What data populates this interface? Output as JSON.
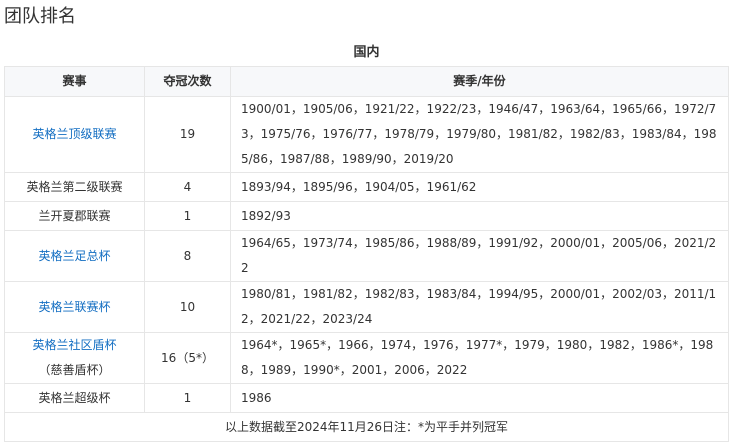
{
  "title": "团队排名",
  "caption": "国内",
  "headers": [
    "赛事",
    "夺冠次数",
    "赛季/年份"
  ],
  "rows": [
    {
      "event": "英格兰顶级联赛",
      "link": true,
      "count": "19",
      "seasons": "1900/01，1905/06，1921/22，1922/23，1946/47，1963/64，1965/66，1972/73，1975/76，1976/77，1978/79，1979/80，1981/82，1982/83，1983/84，1985/86，1987/88，1989/90，2019/20"
    },
    {
      "event": "英格兰第二级联赛",
      "link": false,
      "count": "4",
      "seasons": "1893/94，1895/96，1904/05，1961/62"
    },
    {
      "event": "兰开夏郡联赛",
      "link": false,
      "count": "1",
      "seasons": "1892/93"
    },
    {
      "event": "英格兰足总杯",
      "link": true,
      "count": "8",
      "seasons": "1964/65，1973/74，1985/86，1988/89，1991/92，2000/01，2005/06，2021/22"
    },
    {
      "event": "英格兰联赛杯",
      "link": true,
      "count": "10",
      "seasons": "1980/81，1981/82，1982/83，1983/84，1994/95，2000/01，2002/03，2011/12，2021/22，2023/24"
    },
    {
      "event": "英格兰社区盾杯",
      "event_sub": "（慈善盾杯）",
      "link": true,
      "count": "16（5*）",
      "seasons": "1964*，1965*，1966，1974，1976，1977*，1979，1980，1982，1986*，1988，1989，1990*，2001，2006，2022"
    },
    {
      "event": "英格兰超级杯",
      "link": false,
      "count": "1",
      "seasons": "1986"
    }
  ],
  "footer": "以上数据截至2024年11月26日注：*为平手并列冠军",
  "colors": {
    "link": "#136ec2"
  }
}
